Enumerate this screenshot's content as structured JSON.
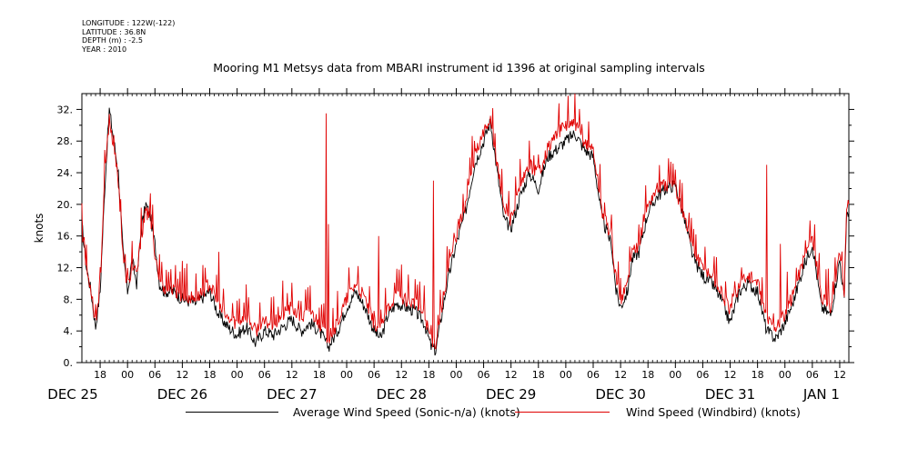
{
  "metadata": {
    "longitude": "LONGITUDE : 122W(-122)",
    "latitude": "LATITUDE : 36.8N",
    "depth": "DEPTH (m) : -2.5",
    "year": "YEAR : 2010"
  },
  "colors": {
    "sonic": "#000000",
    "windbird": "#e00000"
  },
  "chart_data": {
    "type": "line",
    "title": "Mooring M1 Metsys data from MBARI instrument id 1396 at original sampling intervals",
    "ylabel": "knots",
    "xlabel": "",
    "ylim": [
      0,
      34
    ],
    "yticks": [
      "0.",
      "4.",
      "8.",
      "12.",
      "16.",
      "20.",
      "24.",
      "28.",
      "32."
    ],
    "xlim": [
      "2010-12-25T14:00",
      "2011-01-01T14:00"
    ],
    "x_tick_hours": [
      {
        "t": "2010-12-25T18:00",
        "label": "18"
      },
      {
        "t": "2010-12-26T00:00",
        "label": "00"
      },
      {
        "t": "2010-12-26T06:00",
        "label": "06"
      },
      {
        "t": "2010-12-26T12:00",
        "label": "12"
      },
      {
        "t": "2010-12-26T18:00",
        "label": "18"
      },
      {
        "t": "2010-12-27T00:00",
        "label": "00"
      },
      {
        "t": "2010-12-27T06:00",
        "label": "06"
      },
      {
        "t": "2010-12-27T12:00",
        "label": "12"
      },
      {
        "t": "2010-12-27T18:00",
        "label": "18"
      },
      {
        "t": "2010-12-28T00:00",
        "label": "00"
      },
      {
        "t": "2010-12-28T06:00",
        "label": "06"
      },
      {
        "t": "2010-12-28T12:00",
        "label": "12"
      },
      {
        "t": "2010-12-28T18:00",
        "label": "18"
      },
      {
        "t": "2010-12-29T00:00",
        "label": "00"
      },
      {
        "t": "2010-12-29T06:00",
        "label": "06"
      },
      {
        "t": "2010-12-29T12:00",
        "label": "12"
      },
      {
        "t": "2010-12-29T18:00",
        "label": "18"
      },
      {
        "t": "2010-12-30T00:00",
        "label": "00"
      },
      {
        "t": "2010-12-30T06:00",
        "label": "06"
      },
      {
        "t": "2010-12-30T12:00",
        "label": "12"
      },
      {
        "t": "2010-12-30T18:00",
        "label": "18"
      },
      {
        "t": "2010-12-31T00:00",
        "label": "00"
      },
      {
        "t": "2010-12-31T06:00",
        "label": "06"
      },
      {
        "t": "2010-12-31T12:00",
        "label": "12"
      },
      {
        "t": "2010-12-31T18:00",
        "label": "18"
      },
      {
        "t": "2011-01-01T00:00",
        "label": "00"
      },
      {
        "t": "2011-01-01T06:00",
        "label": "06"
      },
      {
        "t": "2011-01-01T12:00",
        "label": "12"
      }
    ],
    "x_tick_days": [
      {
        "t": "2010-12-25T12:00",
        "label": "DEC 25"
      },
      {
        "t": "2010-12-26T12:00",
        "label": "DEC 26"
      },
      {
        "t": "2010-12-27T12:00",
        "label": "DEC 27"
      },
      {
        "t": "2010-12-28T12:00",
        "label": "DEC 28"
      },
      {
        "t": "2010-12-29T12:00",
        "label": "DEC 29"
      },
      {
        "t": "2010-12-30T12:00",
        "label": "DEC 30"
      },
      {
        "t": "2010-12-31T12:00",
        "label": "DEC 31"
      },
      {
        "t": "2011-01-01T08:00",
        "label": "JAN  1"
      }
    ],
    "grid": false,
    "legend_position": "bottom",
    "series": [
      {
        "name": "Average Wind Speed (Sonic-n/a) (knots)",
        "color": "#000000",
        "points": [
          [
            "2010-12-25T14:00",
            17.5
          ],
          [
            "2010-12-25T15:00",
            12
          ],
          [
            "2010-12-25T16:00",
            9
          ],
          [
            "2010-12-25T17:00",
            4.5
          ],
          [
            "2010-12-25T18:00",
            9
          ],
          [
            "2010-12-25T19:00",
            22
          ],
          [
            "2010-12-25T20:00",
            32
          ],
          [
            "2010-12-25T21:00",
            28
          ],
          [
            "2010-12-25T22:00",
            24
          ],
          [
            "2010-12-25T23:00",
            14
          ],
          [
            "2010-12-26T00:00",
            9
          ],
          [
            "2010-12-26T01:00",
            13
          ],
          [
            "2010-12-26T02:00",
            10
          ],
          [
            "2010-12-26T03:00",
            17
          ],
          [
            "2010-12-26T04:00",
            20
          ],
          [
            "2010-12-26T05:00",
            18.5
          ],
          [
            "2010-12-26T06:00",
            15
          ],
          [
            "2010-12-26T07:00",
            10
          ],
          [
            "2010-12-26T08:00",
            9
          ],
          [
            "2010-12-26T10:00",
            9
          ],
          [
            "2010-12-26T12:00",
            8
          ],
          [
            "2010-12-26T15:00",
            7.5
          ],
          [
            "2010-12-26T18:00",
            9
          ],
          [
            "2010-12-26T20:00",
            6
          ],
          [
            "2010-12-26T22:00",
            4.5
          ],
          [
            "2010-12-27T00:00",
            3.5
          ],
          [
            "2010-12-27T02:00",
            4.5
          ],
          [
            "2010-12-27T04:00",
            2.5
          ],
          [
            "2010-12-27T06:00",
            4
          ],
          [
            "2010-12-27T08:00",
            3.5
          ],
          [
            "2010-12-27T10:00",
            4.5
          ],
          [
            "2010-12-27T12:00",
            5.5
          ],
          [
            "2010-12-27T14:00",
            4
          ],
          [
            "2010-12-27T16:00",
            5
          ],
          [
            "2010-12-27T18:00",
            4
          ],
          [
            "2010-12-27T20:00",
            2
          ],
          [
            "2010-12-27T22:00",
            4
          ],
          [
            "2010-12-28T00:00",
            7
          ],
          [
            "2010-12-28T02:00",
            9
          ],
          [
            "2010-12-28T04:00",
            7
          ],
          [
            "2010-12-28T06:00",
            4
          ],
          [
            "2010-12-28T07:30",
            3
          ],
          [
            "2010-12-28T09:00",
            6
          ],
          [
            "2010-12-28T11:00",
            7.5
          ],
          [
            "2010-12-28T13:00",
            7
          ],
          [
            "2010-12-28T15:00",
            6.5
          ],
          [
            "2010-12-28T17:00",
            5
          ],
          [
            "2010-12-28T18:30",
            2
          ],
          [
            "2010-12-28T19:30",
            1.5
          ],
          [
            "2010-12-28T20:30",
            5
          ],
          [
            "2010-12-28T22:00",
            10
          ],
          [
            "2010-12-29T00:00",
            15
          ],
          [
            "2010-12-29T02:00",
            19
          ],
          [
            "2010-12-29T04:00",
            25
          ],
          [
            "2010-12-29T06:00",
            28
          ],
          [
            "2010-12-29T07:30",
            30.5
          ],
          [
            "2010-12-29T09:00",
            24
          ],
          [
            "2010-12-29T10:30",
            18
          ],
          [
            "2010-12-29T12:00",
            17
          ],
          [
            "2010-12-29T14:00",
            21
          ],
          [
            "2010-12-29T16:00",
            24
          ],
          [
            "2010-12-29T18:00",
            22
          ],
          [
            "2010-12-29T20:00",
            26
          ],
          [
            "2010-12-29T22:00",
            27
          ],
          [
            "2010-12-30T00:00",
            28
          ],
          [
            "2010-12-30T02:00",
            29
          ],
          [
            "2010-12-30T04:00",
            27
          ],
          [
            "2010-12-30T06:00",
            26
          ],
          [
            "2010-12-30T08:00",
            18
          ],
          [
            "2010-12-30T10:00",
            15
          ],
          [
            "2010-12-30T11:00",
            9
          ],
          [
            "2010-12-30T12:00",
            7
          ],
          [
            "2010-12-30T13:30",
            9
          ],
          [
            "2010-12-30T14:30",
            13
          ],
          [
            "2010-12-30T16:00",
            14
          ],
          [
            "2010-12-30T18:00",
            19
          ],
          [
            "2010-12-30T20:00",
            21
          ],
          [
            "2010-12-30T22:00",
            22
          ],
          [
            "2010-12-31T00:00",
            22.5
          ],
          [
            "2010-12-31T02:00",
            18
          ],
          [
            "2010-12-31T04:00",
            13
          ],
          [
            "2010-12-31T06:00",
            11
          ],
          [
            "2010-12-31T08:00",
            10
          ],
          [
            "2010-12-31T10:00",
            8
          ],
          [
            "2010-12-31T12:00",
            5
          ],
          [
            "2010-12-31T14:00",
            9
          ],
          [
            "2010-12-31T16:00",
            10
          ],
          [
            "2010-12-31T18:00",
            9
          ],
          [
            "2010-12-31T20:00",
            4
          ],
          [
            "2010-12-31T22:00",
            3
          ],
          [
            "2011-01-01T00:00",
            5
          ],
          [
            "2011-01-01T02:00",
            8
          ],
          [
            "2011-01-01T04:00",
            12
          ],
          [
            "2011-01-01T06:00",
            15
          ],
          [
            "2011-01-01T08:00",
            7
          ],
          [
            "2011-01-01T10:00",
            6
          ],
          [
            "2011-01-01T12:00",
            13
          ],
          [
            "2011-01-01T13:00",
            8
          ],
          [
            "2011-01-01T13:30",
            19
          ],
          [
            "2011-01-01T14:00",
            19
          ]
        ]
      },
      {
        "name": "Wind Speed (Windbird) (knots)",
        "color": "#e00000",
        "points": [
          [
            "2010-12-25T14:00",
            17
          ],
          [
            "2010-12-25T15:00",
            11.5
          ],
          [
            "2010-12-25T16:00",
            9.5
          ],
          [
            "2010-12-25T17:00",
            5
          ],
          [
            "2010-12-25T18:00",
            10
          ],
          [
            "2010-12-25T19:00",
            23
          ],
          [
            "2010-12-25T20:00",
            31
          ],
          [
            "2010-12-25T21:00",
            27
          ],
          [
            "2010-12-25T22:00",
            23
          ],
          [
            "2010-12-25T23:00",
            13.5
          ],
          [
            "2010-12-26T00:00",
            9.5
          ],
          [
            "2010-12-26T01:00",
            12
          ],
          [
            "2010-12-26T02:00",
            11
          ],
          [
            "2010-12-26T03:00",
            16
          ],
          [
            "2010-12-26T04:00",
            19
          ],
          [
            "2010-12-26T05:00",
            18
          ],
          [
            "2010-12-26T06:00",
            14
          ],
          [
            "2010-12-26T07:00",
            10.5
          ],
          [
            "2010-12-26T08:00",
            9.5
          ],
          [
            "2010-12-26T10:00",
            9
          ],
          [
            "2010-12-26T12:00",
            8.5
          ],
          [
            "2010-12-26T15:00",
            8
          ],
          [
            "2010-12-26T18:00",
            10
          ],
          [
            "2010-12-26T20:00",
            7
          ],
          [
            "2010-12-26T22:00",
            5.5
          ],
          [
            "2010-12-27T00:00",
            5
          ],
          [
            "2010-12-27T02:00",
            6
          ],
          [
            "2010-12-27T04:00",
            4
          ],
          [
            "2010-12-27T06:00",
            5
          ],
          [
            "2010-12-27T08:00",
            5
          ],
          [
            "2010-12-27T10:00",
            6
          ],
          [
            "2010-12-27T12:00",
            7
          ],
          [
            "2010-12-27T14:00",
            5.5
          ],
          [
            "2010-12-27T16:00",
            6.5
          ],
          [
            "2010-12-27T18:00",
            5
          ],
          [
            "2010-12-27T20:00",
            3
          ],
          [
            "2010-12-27T22:00",
            5
          ],
          [
            "2010-12-28T00:00",
            8
          ],
          [
            "2010-12-28T02:00",
            10
          ],
          [
            "2010-12-28T04:00",
            8
          ],
          [
            "2010-12-28T06:00",
            5
          ],
          [
            "2010-12-28T07:30",
            4
          ],
          [
            "2010-12-28T09:00",
            7
          ],
          [
            "2010-12-28T11:00",
            8.5
          ],
          [
            "2010-12-28T13:00",
            8
          ],
          [
            "2010-12-28T15:00",
            7.5
          ],
          [
            "2010-12-28T17:00",
            6
          ],
          [
            "2010-12-28T18:30",
            3
          ],
          [
            "2010-12-28T19:30",
            2.5
          ],
          [
            "2010-12-28T20:30",
            6
          ],
          [
            "2010-12-28T22:00",
            11
          ],
          [
            "2010-12-29T00:00",
            16
          ],
          [
            "2010-12-29T02:00",
            20
          ],
          [
            "2010-12-29T04:00",
            26
          ],
          [
            "2010-12-29T06:00",
            29
          ],
          [
            "2010-12-29T07:30",
            31
          ],
          [
            "2010-12-29T09:00",
            25
          ],
          [
            "2010-12-29T10:30",
            19
          ],
          [
            "2010-12-29T12:00",
            18
          ],
          [
            "2010-12-29T14:00",
            22
          ],
          [
            "2010-12-29T16:00",
            25
          ],
          [
            "2010-12-29T18:00",
            24
          ],
          [
            "2010-12-29T20:00",
            27
          ],
          [
            "2010-12-29T22:00",
            29
          ],
          [
            "2010-12-30T00:00",
            30
          ],
          [
            "2010-12-30T02:00",
            30
          ],
          [
            "2010-12-30T04:00",
            28
          ],
          [
            "2010-12-30T06:00",
            27
          ],
          [
            "2010-12-30T08:00",
            19
          ],
          [
            "2010-12-30T10:00",
            16
          ],
          [
            "2010-12-30T11:00",
            10
          ],
          [
            "2010-12-30T12:00",
            8
          ],
          [
            "2010-12-30T13:30",
            10
          ],
          [
            "2010-12-30T14:30",
            14
          ],
          [
            "2010-12-30T16:00",
            15
          ],
          [
            "2010-12-30T18:00",
            20
          ],
          [
            "2010-12-30T20:00",
            22
          ],
          [
            "2010-12-30T22:00",
            22.5
          ],
          [
            "2010-12-31T00:00",
            22
          ],
          [
            "2010-12-31T02:00",
            18.5
          ],
          [
            "2010-12-31T04:00",
            14
          ],
          [
            "2010-12-31T06:00",
            12
          ],
          [
            "2010-12-31T08:00",
            11
          ],
          [
            "2010-12-31T10:00",
            9
          ],
          [
            "2010-12-31T12:00",
            6.5
          ],
          [
            "2010-12-31T14:00",
            10
          ],
          [
            "2010-12-31T16:00",
            11
          ],
          [
            "2010-12-31T18:00",
            10
          ],
          [
            "2010-12-31T20:00",
            5.5
          ],
          [
            "2010-12-31T22:00",
            4.5
          ],
          [
            "2011-01-01T00:00",
            6
          ],
          [
            "2011-01-01T02:00",
            9
          ],
          [
            "2011-01-01T04:00",
            13
          ],
          [
            "2011-01-01T06:00",
            16
          ],
          [
            "2011-01-01T08:00",
            8
          ],
          [
            "2011-01-01T10:00",
            7
          ],
          [
            "2011-01-01T12:00",
            14
          ],
          [
            "2011-01-01T13:00",
            9
          ],
          [
            "2011-01-01T13:30",
            20
          ],
          [
            "2011-01-01T14:00",
            20
          ]
        ],
        "spikes": [
          [
            "2010-12-26T20:00",
            14
          ],
          [
            "2010-12-27T19:30",
            31.5
          ],
          [
            "2010-12-27T20:00",
            17.5
          ],
          [
            "2010-12-28T07:00",
            16
          ],
          [
            "2010-12-28T19:00",
            23
          ],
          [
            "2010-12-29T05:00",
            27
          ],
          [
            "2010-12-31T20:00",
            25
          ],
          [
            "2010-12-31T23:00",
            15
          ]
        ]
      }
    ]
  }
}
